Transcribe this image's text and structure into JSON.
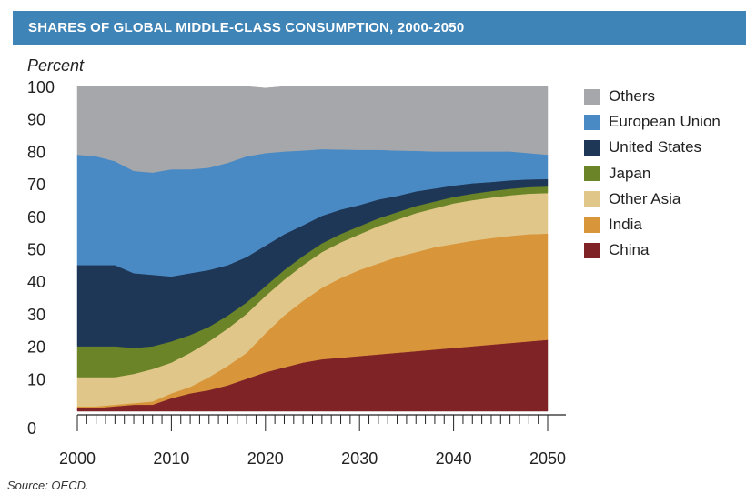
{
  "header": {
    "title": "SHARES OF GLOBAL MIDDLE-CLASS CONSUMPTION, 2000-2050"
  },
  "footer": {
    "source": "Source: OECD."
  },
  "chart_data": {
    "type": "area",
    "stacked": true,
    "ylabel": "Percent",
    "xlabel": "",
    "ylim": [
      0,
      100
    ],
    "xlim": [
      2000,
      2050
    ],
    "yticks": [
      0,
      10,
      20,
      30,
      40,
      50,
      60,
      70,
      80,
      90,
      100
    ],
    "xticks": [
      2000,
      2010,
      2020,
      2030,
      2040,
      2050
    ],
    "legend_position": "right",
    "x": [
      2000,
      2002,
      2004,
      2006,
      2008,
      2010,
      2012,
      2014,
      2016,
      2018,
      2020,
      2022,
      2024,
      2026,
      2028,
      2030,
      2032,
      2034,
      2036,
      2038,
      2040,
      2042,
      2044,
      2046,
      2048,
      2050
    ],
    "series": [
      {
        "name": "China",
        "color": "#7f2326",
        "values": [
          1,
          1,
          1.5,
          2,
          2,
          4,
          5.5,
          6.5,
          8,
          10,
          12,
          13.5,
          15,
          16,
          16.5,
          17,
          17.5,
          18,
          18.5,
          19,
          19.5,
          20,
          20.5,
          21,
          21.5,
          22
        ]
      },
      {
        "name": "India",
        "color": "#d8953a",
        "values": [
          0.5,
          0.5,
          0.5,
          0.5,
          1,
          1.5,
          2,
          4,
          6,
          8,
          12,
          16,
          19,
          22,
          24.5,
          26.5,
          28,
          29.5,
          30.5,
          31.5,
          32,
          32.5,
          32.8,
          33,
          33,
          32.7
        ]
      },
      {
        "name": "Other Asia",
        "color": "#e0c688",
        "values": [
          9,
          9,
          8.5,
          9,
          10,
          9.5,
          10.5,
          11,
          11.5,
          12,
          11.5,
          11,
          11,
          11,
          11,
          11,
          11.5,
          11.5,
          12,
          12,
          12.5,
          12.5,
          12.5,
          12.5,
          12.5,
          12.5
        ]
      },
      {
        "name": "Japan",
        "color": "#6a8427",
        "values": [
          9.5,
          9.5,
          9.5,
          8,
          7,
          6.5,
          5.5,
          4.5,
          4,
          3.5,
          3,
          3,
          2.8,
          2.7,
          2.6,
          2.5,
          2.4,
          2.3,
          2.2,
          2.1,
          2,
          2,
          2,
          2,
          2,
          2
        ]
      },
      {
        "name": "United States",
        "color": "#1f3757",
        "values": [
          25,
          25,
          25,
          23,
          22,
          20,
          19,
          17.5,
          15.5,
          14,
          12.5,
          11,
          9.5,
          8.5,
          7.5,
          6.5,
          5.8,
          5,
          4.5,
          4,
          3.5,
          3.2,
          2.8,
          2.6,
          2.4,
          2.3
        ]
      },
      {
        "name": "European Union",
        "color": "#4a8ac4",
        "values": [
          34,
          33.5,
          32,
          31.5,
          31.5,
          33,
          32,
          31.5,
          31.5,
          31,
          28.5,
          25.5,
          23,
          20.5,
          18.5,
          17,
          15.3,
          14,
          12.5,
          11.4,
          10.5,
          9.8,
          9.4,
          8.9,
          8.1,
          7.5
        ]
      },
      {
        "name": "Others",
        "color": "#a6a7aa",
        "values": [
          21,
          21.5,
          23,
          26,
          26.5,
          25.5,
          25.5,
          25,
          23.5,
          21.5,
          20,
          20,
          19.7,
          19.3,
          19.4,
          19.5,
          19.5,
          19.7,
          19.8,
          20,
          20,
          20,
          20,
          20,
          20.5,
          21
        ]
      }
    ],
    "legend_order": [
      "Others",
      "European Union",
      "United States",
      "Japan",
      "Other Asia",
      "India",
      "China"
    ]
  }
}
